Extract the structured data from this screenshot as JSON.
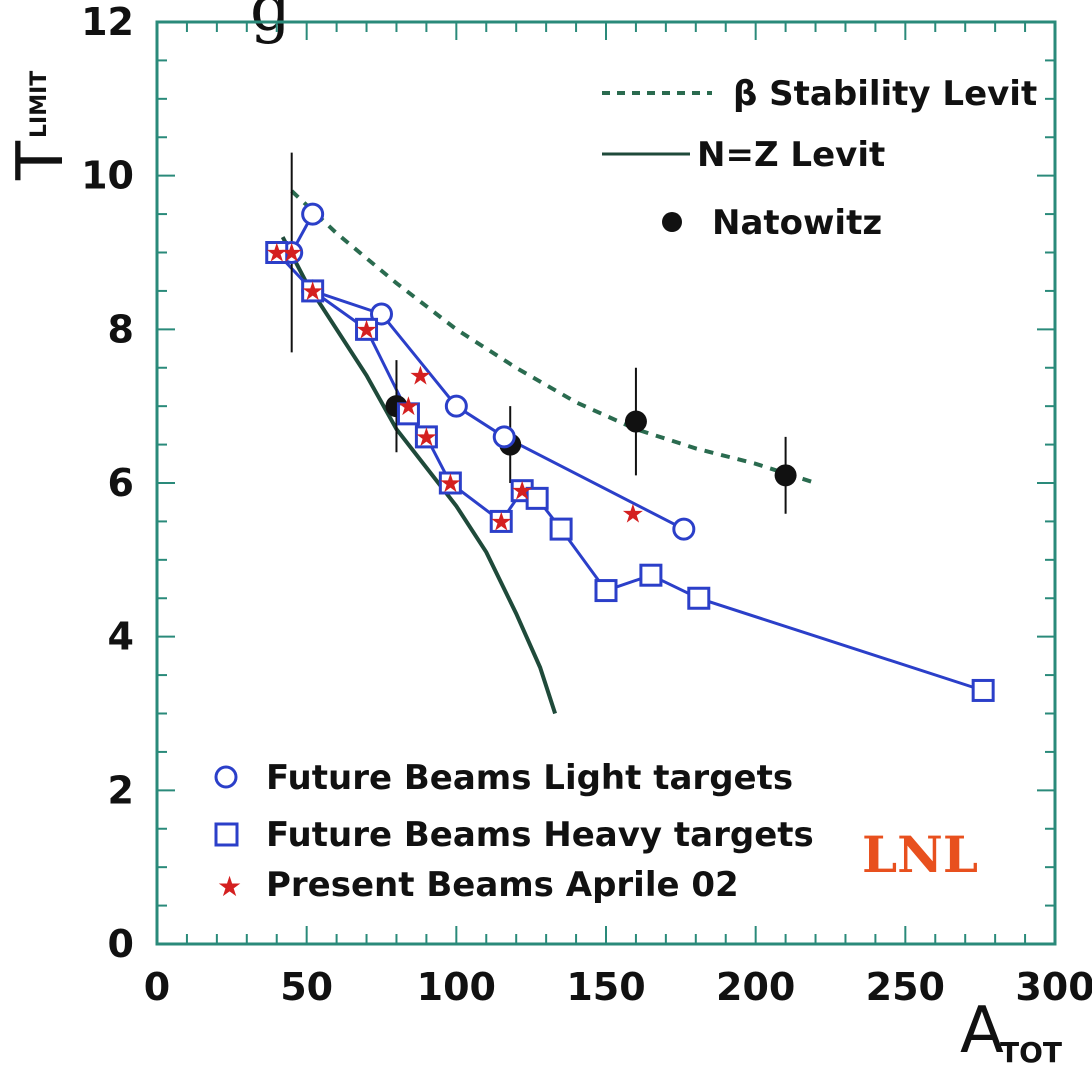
{
  "page_title_fragment": "g",
  "lab_label": "LNL",
  "chart_data": {
    "type": "line",
    "title": "",
    "xlabel": {
      "main": "A",
      "sub": "TOT"
    },
    "ylabel": {
      "main": "T",
      "sub": "LIMIT"
    },
    "xlim": [
      0,
      300
    ],
    "ylim": [
      0,
      12
    ],
    "x_ticks": [
      "0",
      "50",
      "100",
      "150",
      "200",
      "250",
      "300"
    ],
    "y_ticks": [
      "0",
      "2",
      "4",
      "6",
      "8",
      "10",
      "12"
    ],
    "grid": false,
    "legend_top_right": [
      "β Stability Levit",
      "N=Z Levit",
      "Natowitz"
    ],
    "legend_bottom_left": [
      "Future Beams Light targets",
      "Future Beams Heavy targets",
      "Present Beams Aprile 02"
    ],
    "series": [
      {
        "name": "β Stability Levit",
        "style": "dashed",
        "color": "#2a6b4f",
        "points": [
          [
            45,
            9.8
          ],
          [
            60,
            9.25
          ],
          [
            80,
            8.6
          ],
          [
            100,
            8.0
          ],
          [
            120,
            7.5
          ],
          [
            140,
            7.05
          ],
          [
            160,
            6.7
          ],
          [
            180,
            6.45
          ],
          [
            200,
            6.25
          ],
          [
            220,
            6.0
          ]
        ]
      },
      {
        "name": "N=Z Levit",
        "style": "solid",
        "color": "#1f4a3a",
        "points": [
          [
            42,
            9.2
          ],
          [
            50,
            8.6
          ],
          [
            60,
            8.0
          ],
          [
            70,
            7.4
          ],
          [
            80,
            6.7
          ],
          [
            90,
            6.2
          ],
          [
            100,
            5.7
          ],
          [
            110,
            5.1
          ],
          [
            120,
            4.3
          ],
          [
            128,
            3.6
          ],
          [
            133,
            3.0
          ]
        ]
      },
      {
        "name": "Natowitz",
        "marker": "filled-circle",
        "color": "#111111",
        "points": [
          [
            45,
            9.0
          ],
          [
            80,
            7.0
          ],
          [
            118,
            6.5
          ],
          [
            160,
            6.8
          ],
          [
            210,
            6.1
          ]
        ],
        "y_err": [
          1.3,
          0.6,
          0.5,
          0.7,
          0.5
        ]
      },
      {
        "name": "Future Beams Light targets",
        "marker": "open-circle",
        "color": "#2b3fc9",
        "points": [
          [
            45,
            9.0
          ],
          [
            52,
            9.5
          ],
          [
            52,
            8.5
          ],
          [
            75,
            8.2
          ],
          [
            100,
            7.0
          ],
          [
            116,
            6.6
          ],
          [
            176,
            5.4
          ]
        ],
        "segments": [
          [
            [
              45,
              9.0
            ],
            [
              52,
              9.5
            ]
          ],
          [
            [
              52,
              8.5
            ],
            [
              75,
              8.2
            ],
            [
              100,
              7.0
            ],
            [
              116,
              6.6
            ],
            [
              176,
              5.4
            ]
          ]
        ]
      },
      {
        "name": "Future Beams Heavy targets",
        "marker": "open-square",
        "color": "#2b3fc9",
        "points": [
          [
            40,
            9.0
          ],
          [
            52,
            8.5
          ],
          [
            70,
            8.0
          ],
          [
            84,
            6.9
          ],
          [
            90,
            6.6
          ],
          [
            98,
            6.0
          ],
          [
            115,
            5.5
          ],
          [
            122,
            5.9
          ],
          [
            127,
            5.8
          ],
          [
            135,
            5.4
          ],
          [
            150,
            4.6
          ],
          [
            165,
            4.8
          ],
          [
            181,
            4.5
          ],
          [
            276,
            3.3
          ]
        ]
      },
      {
        "name": "Present Beams Aprile 02",
        "marker": "star",
        "color": "#d42020",
        "points": [
          [
            40,
            9.0
          ],
          [
            45,
            9.0
          ],
          [
            52,
            8.5
          ],
          [
            70,
            8.0
          ],
          [
            84,
            7.0
          ],
          [
            88,
            7.4
          ],
          [
            90,
            6.6
          ],
          [
            98,
            6.0
          ],
          [
            115,
            5.5
          ],
          [
            122,
            5.9
          ],
          [
            159,
            5.6
          ]
        ]
      }
    ]
  }
}
